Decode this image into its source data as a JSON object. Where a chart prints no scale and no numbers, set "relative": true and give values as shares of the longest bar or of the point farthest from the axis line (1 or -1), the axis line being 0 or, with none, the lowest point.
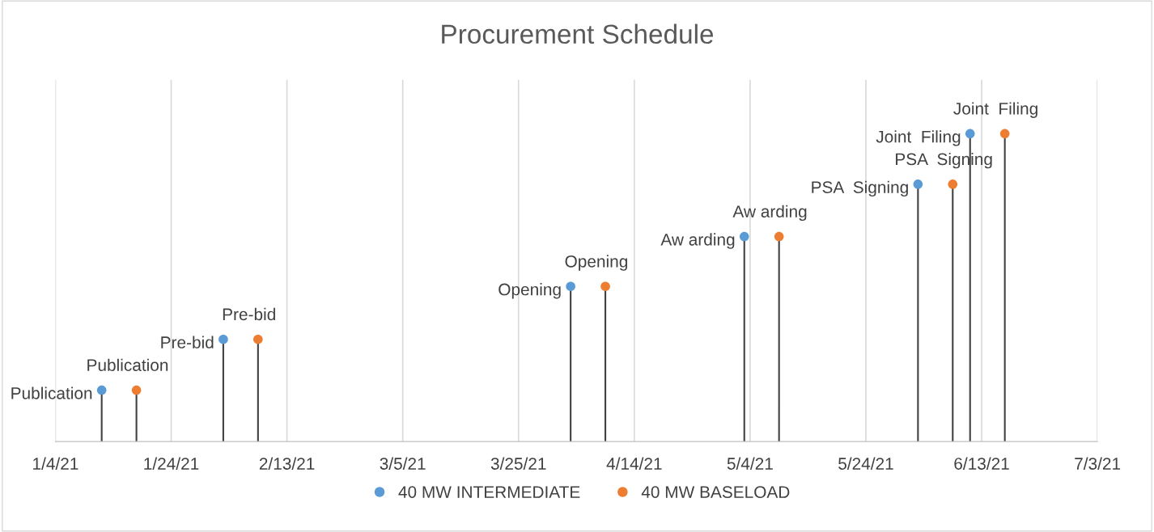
{
  "chart_data": {
    "type": "lollipop",
    "title": "Procurement Schedule",
    "relative": true,
    "xlim": [
      "2021-01-04",
      "2021-07-03"
    ],
    "xticks": [
      {
        "value": "2021-01-04",
        "label": "1/4/21"
      },
      {
        "value": "2021-01-24",
        "label": "1/24/21"
      },
      {
        "value": "2021-02-13",
        "label": "2/13/21"
      },
      {
        "value": "2021-03-05",
        "label": "3/5/21"
      },
      {
        "value": "2021-03-25",
        "label": "3/25/21"
      },
      {
        "value": "2021-04-14",
        "label": "4/14/21"
      },
      {
        "value": "2021-05-04",
        "label": "5/4/21"
      },
      {
        "value": "2021-05-24",
        "label": "5/24/21"
      },
      {
        "value": "2021-06-13",
        "label": "6/13/21"
      },
      {
        "value": "2021-07-03",
        "label": "7/3/21"
      }
    ],
    "series": [
      {
        "name": "40 MW INTERMEDIATE",
        "color": "#5b9bd5",
        "x": [
          "2021-01-12",
          "2021-02-02",
          "2021-04-03",
          "2021-05-03",
          "2021-06-02",
          "2021-06-11"
        ],
        "values": [
          0.167,
          0.332,
          0.504,
          0.666,
          0.836,
          1
        ]
      },
      {
        "name": "40 MW BASELOAD",
        "color": "#ed7d31",
        "x": [
          "2021-01-18",
          "2021-02-08",
          "2021-04-09",
          "2021-05-09",
          "2021-06-08",
          "2021-06-17"
        ],
        "values": [
          0.167,
          0.332,
          0.504,
          0.666,
          0.836,
          1
        ]
      }
    ],
    "annotations": [
      {
        "text": "Publication",
        "x": "2021-01-12",
        "y": 0.167
      },
      {
        "text": "Publication",
        "x": "2021-01-18",
        "y": 0.167
      },
      {
        "text": "Pre-bid",
        "x": "2021-02-02",
        "y": 0.332
      },
      {
        "text": "Pre-bid",
        "x": "2021-02-08",
        "y": 0.332
      },
      {
        "text": "Opening",
        "x": "2021-04-03",
        "y": 0.504
      },
      {
        "text": "Opening",
        "x": "2021-04-09",
        "y": 0.504
      },
      {
        "text": "Aw arding",
        "x": "2021-05-03",
        "y": 0.666
      },
      {
        "text": "Aw arding",
        "x": "2021-05-09",
        "y": 0.666
      },
      {
        "text": "PSA  Signing",
        "x": "2021-06-02",
        "y": 0.836
      },
      {
        "text": "PSA  Signing",
        "x": "2021-06-08",
        "y": 0.836
      },
      {
        "text": "Joint  Filing",
        "x": "2021-06-11",
        "y": 1
      },
      {
        "text": "Joint  Filing",
        "x": "2021-06-17",
        "y": 1
      }
    ],
    "grid": "x",
    "legend": "bottom",
    "marker": "circle"
  }
}
